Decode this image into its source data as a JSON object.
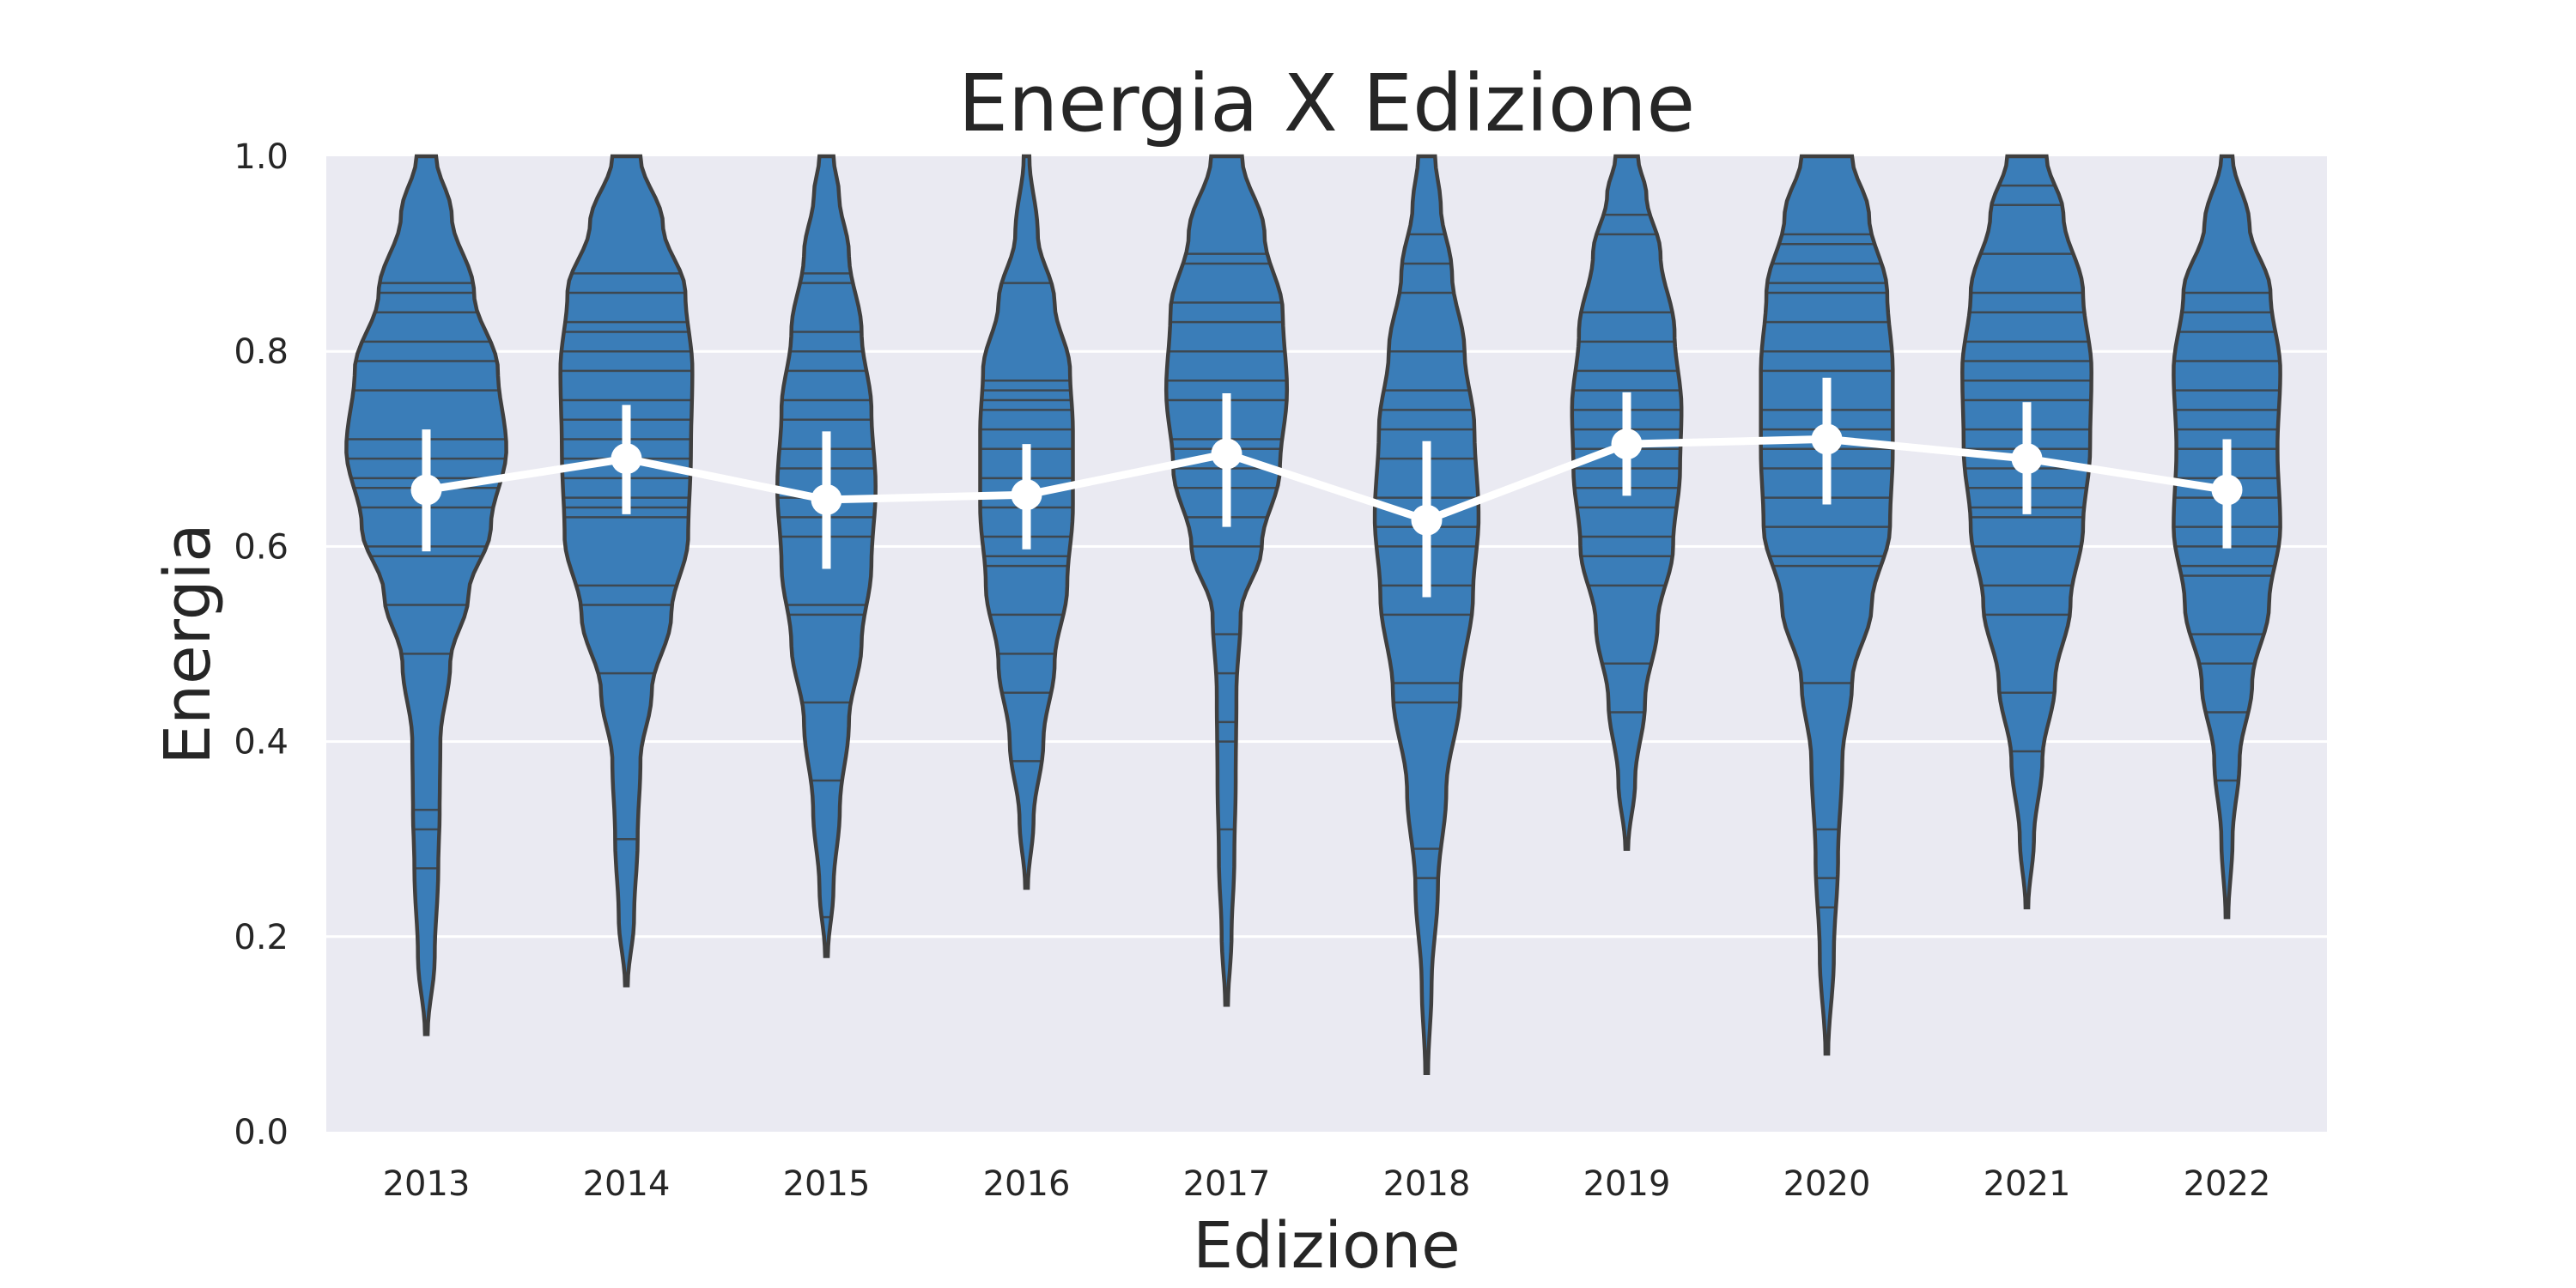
{
  "chart_data": {
    "type": "violin",
    "title": "Energia X Edizione",
    "xlabel": "Edizione",
    "ylabel": "Energia",
    "ylim": [
      0.0,
      1.0
    ],
    "yticks": [
      "0.0",
      "0.2",
      "0.4",
      "0.6",
      "0.8",
      "1.0"
    ],
    "grid": true,
    "categories": [
      "2013",
      "2014",
      "2015",
      "2016",
      "2017",
      "2018",
      "2019",
      "2020",
      "2021",
      "2022"
    ],
    "colors": {
      "violin_fill": "#3a7db8",
      "plot_background": "#eaeaf2",
      "mean_marker": "#ffffff"
    },
    "series": [
      {
        "mean": 0.658,
        "ci": [
          0.595,
          0.72
        ],
        "min": 0.1,
        "max": 1.0,
        "profile": [
          [
            0.1,
            0.1
          ],
          [
            0.18,
            0.6
          ],
          [
            0.27,
            0.85
          ],
          [
            0.33,
            0.95
          ],
          [
            0.4,
            1.0
          ],
          [
            0.48,
            1.7
          ],
          [
            0.55,
            3.0
          ],
          [
            0.62,
            4.6
          ],
          [
            0.7,
            5.7
          ],
          [
            0.78,
            5.1
          ],
          [
            0.86,
            3.4
          ],
          [
            0.94,
            1.8
          ],
          [
            1.0,
            0.7
          ]
        ],
        "samples": [
          0.27,
          0.31,
          0.33,
          0.49,
          0.54,
          0.59,
          0.6,
          0.64,
          0.66,
          0.67,
          0.69,
          0.71,
          0.76,
          0.79,
          0.81,
          0.84,
          0.86,
          0.87
        ]
      },
      {
        "mean": 0.69,
        "ci": [
          0.633,
          0.745
        ],
        "min": 0.15,
        "max": 1.0,
        "profile": [
          [
            0.15,
            0.1
          ],
          [
            0.22,
            0.55
          ],
          [
            0.3,
            0.8
          ],
          [
            0.38,
            1.0
          ],
          [
            0.45,
            1.8
          ],
          [
            0.53,
            3.2
          ],
          [
            0.61,
            4.4
          ],
          [
            0.7,
            4.6
          ],
          [
            0.78,
            4.7
          ],
          [
            0.86,
            4.2
          ],
          [
            0.93,
            2.6
          ],
          [
            1.0,
            1.0
          ]
        ],
        "samples": [
          0.3,
          0.47,
          0.54,
          0.56,
          0.63,
          0.64,
          0.65,
          0.67,
          0.69,
          0.71,
          0.73,
          0.75,
          0.78,
          0.8,
          0.82,
          0.83,
          0.86,
          0.88
        ]
      },
      {
        "mean": 0.648,
        "ci": [
          0.577,
          0.718
        ],
        "min": 0.18,
        "max": 1.0,
        "profile": [
          [
            0.18,
            0.1
          ],
          [
            0.25,
            0.5
          ],
          [
            0.33,
            0.95
          ],
          [
            0.42,
            1.6
          ],
          [
            0.5,
            2.5
          ],
          [
            0.58,
            3.2
          ],
          [
            0.66,
            3.5
          ],
          [
            0.74,
            3.2
          ],
          [
            0.82,
            2.5
          ],
          [
            0.9,
            1.6
          ],
          [
            0.96,
            0.9
          ],
          [
            1.0,
            0.5
          ]
        ],
        "samples": [
          0.22,
          0.36,
          0.44,
          0.53,
          0.54,
          0.61,
          0.63,
          0.65,
          0.68,
          0.7,
          0.73,
          0.75,
          0.78,
          0.8,
          0.82,
          0.87,
          0.88
        ]
      },
      {
        "mean": 0.653,
        "ci": [
          0.597,
          0.705
        ],
        "min": 0.25,
        "max": 1.0,
        "profile": [
          [
            0.25,
            0.1
          ],
          [
            0.32,
            0.5
          ],
          [
            0.4,
            1.2
          ],
          [
            0.48,
            2.0
          ],
          [
            0.56,
            2.9
          ],
          [
            0.64,
            3.3
          ],
          [
            0.72,
            3.3
          ],
          [
            0.78,
            3.1
          ],
          [
            0.85,
            2.0
          ],
          [
            0.92,
            0.8
          ],
          [
            1.0,
            0.2
          ]
        ],
        "samples": [
          0.38,
          0.45,
          0.49,
          0.53,
          0.58,
          0.59,
          0.61,
          0.64,
          0.67,
          0.7,
          0.72,
          0.74,
          0.75,
          0.76,
          0.77,
          0.87
        ]
      },
      {
        "mean": 0.695,
        "ci": [
          0.62,
          0.757
        ],
        "min": 0.13,
        "max": 1.0,
        "profile": [
          [
            0.13,
            0.1
          ],
          [
            0.2,
            0.35
          ],
          [
            0.28,
            0.55
          ],
          [
            0.36,
            0.65
          ],
          [
            0.45,
            0.7
          ],
          [
            0.53,
            1.0
          ],
          [
            0.6,
            2.5
          ],
          [
            0.68,
            3.8
          ],
          [
            0.76,
            4.3
          ],
          [
            0.84,
            4.0
          ],
          [
            0.92,
            2.7
          ],
          [
            1.0,
            1.1
          ]
        ],
        "samples": [
          0.31,
          0.4,
          0.42,
          0.47,
          0.51,
          0.6,
          0.63,
          0.66,
          0.68,
          0.7,
          0.71,
          0.75,
          0.77,
          0.8,
          0.83,
          0.85,
          0.89,
          0.9
        ]
      },
      {
        "mean": 0.627,
        "ci": [
          0.548,
          0.708
        ],
        "min": 0.06,
        "max": 1.0,
        "profile": [
          [
            0.06,
            0.1
          ],
          [
            0.15,
            0.35
          ],
          [
            0.25,
            0.8
          ],
          [
            0.35,
            1.4
          ],
          [
            0.45,
            2.4
          ],
          [
            0.55,
            3.3
          ],
          [
            0.63,
            3.7
          ],
          [
            0.72,
            3.4
          ],
          [
            0.8,
            2.7
          ],
          [
            0.88,
            1.8
          ],
          [
            0.95,
            1.0
          ],
          [
            1.0,
            0.6
          ]
        ],
        "samples": [
          0.26,
          0.29,
          0.44,
          0.46,
          0.53,
          0.56,
          0.6,
          0.62,
          0.65,
          0.69,
          0.72,
          0.74,
          0.76,
          0.8,
          0.86,
          0.89,
          0.92
        ]
      },
      {
        "mean": 0.705,
        "ci": [
          0.652,
          0.758
        ],
        "min": 0.29,
        "max": 1.0,
        "profile": [
          [
            0.29,
            0.1
          ],
          [
            0.36,
            0.6
          ],
          [
            0.44,
            1.3
          ],
          [
            0.52,
            2.2
          ],
          [
            0.6,
            3.3
          ],
          [
            0.68,
            3.8
          ],
          [
            0.74,
            3.9
          ],
          [
            0.82,
            3.4
          ],
          [
            0.9,
            2.4
          ],
          [
            0.96,
            1.4
          ],
          [
            1.0,
            0.8
          ]
        ],
        "samples": [
          0.43,
          0.48,
          0.56,
          0.59,
          0.61,
          0.64,
          0.66,
          0.68,
          0.7,
          0.72,
          0.74,
          0.76,
          0.78,
          0.81,
          0.84,
          0.92,
          0.94
        ]
      },
      {
        "mean": 0.71,
        "ci": [
          0.643,
          0.773
        ],
        "min": 0.08,
        "max": 1.0,
        "profile": [
          [
            0.08,
            0.1
          ],
          [
            0.18,
            0.5
          ],
          [
            0.28,
            0.8
          ],
          [
            0.38,
            1.1
          ],
          [
            0.46,
            1.8
          ],
          [
            0.54,
            3.2
          ],
          [
            0.62,
            4.5
          ],
          [
            0.7,
            4.7
          ],
          [
            0.78,
            4.7
          ],
          [
            0.86,
            4.3
          ],
          [
            0.94,
            3.0
          ],
          [
            1.0,
            1.8
          ]
        ],
        "samples": [
          0.23,
          0.26,
          0.31,
          0.46,
          0.58,
          0.59,
          0.62,
          0.65,
          0.68,
          0.7,
          0.72,
          0.74,
          0.78,
          0.8,
          0.83,
          0.86,
          0.87,
          0.89,
          0.91,
          0.92
        ]
      },
      {
        "mean": 0.69,
        "ci": [
          0.633,
          0.748
        ],
        "min": 0.23,
        "max": 1.0,
        "profile": [
          [
            0.23,
            0.1
          ],
          [
            0.3,
            0.5
          ],
          [
            0.38,
            1.1
          ],
          [
            0.46,
            2.0
          ],
          [
            0.54,
            3.1
          ],
          [
            0.62,
            4.0
          ],
          [
            0.7,
            4.5
          ],
          [
            0.78,
            4.6
          ],
          [
            0.86,
            4.0
          ],
          [
            0.94,
            2.6
          ],
          [
            1.0,
            1.4
          ]
        ],
        "samples": [
          0.39,
          0.45,
          0.53,
          0.56,
          0.6,
          0.63,
          0.64,
          0.66,
          0.68,
          0.7,
          0.72,
          0.75,
          0.77,
          0.79,
          0.81,
          0.84,
          0.86,
          0.9,
          0.95,
          0.97
        ]
      },
      {
        "mean": 0.658,
        "ci": [
          0.598,
          0.71
        ],
        "min": 0.22,
        "max": 1.0,
        "profile": [
          [
            0.22,
            0.1
          ],
          [
            0.3,
            0.4
          ],
          [
            0.38,
            0.9
          ],
          [
            0.46,
            1.8
          ],
          [
            0.54,
            3.0
          ],
          [
            0.62,
            3.8
          ],
          [
            0.7,
            3.6
          ],
          [
            0.78,
            3.8
          ],
          [
            0.86,
            3.1
          ],
          [
            0.93,
            1.6
          ],
          [
            1.0,
            0.4
          ]
        ],
        "samples": [
          0.36,
          0.43,
          0.48,
          0.51,
          0.57,
          0.58,
          0.6,
          0.62,
          0.65,
          0.67,
          0.7,
          0.72,
          0.74,
          0.76,
          0.79,
          0.82,
          0.84,
          0.86
        ]
      }
    ]
  }
}
